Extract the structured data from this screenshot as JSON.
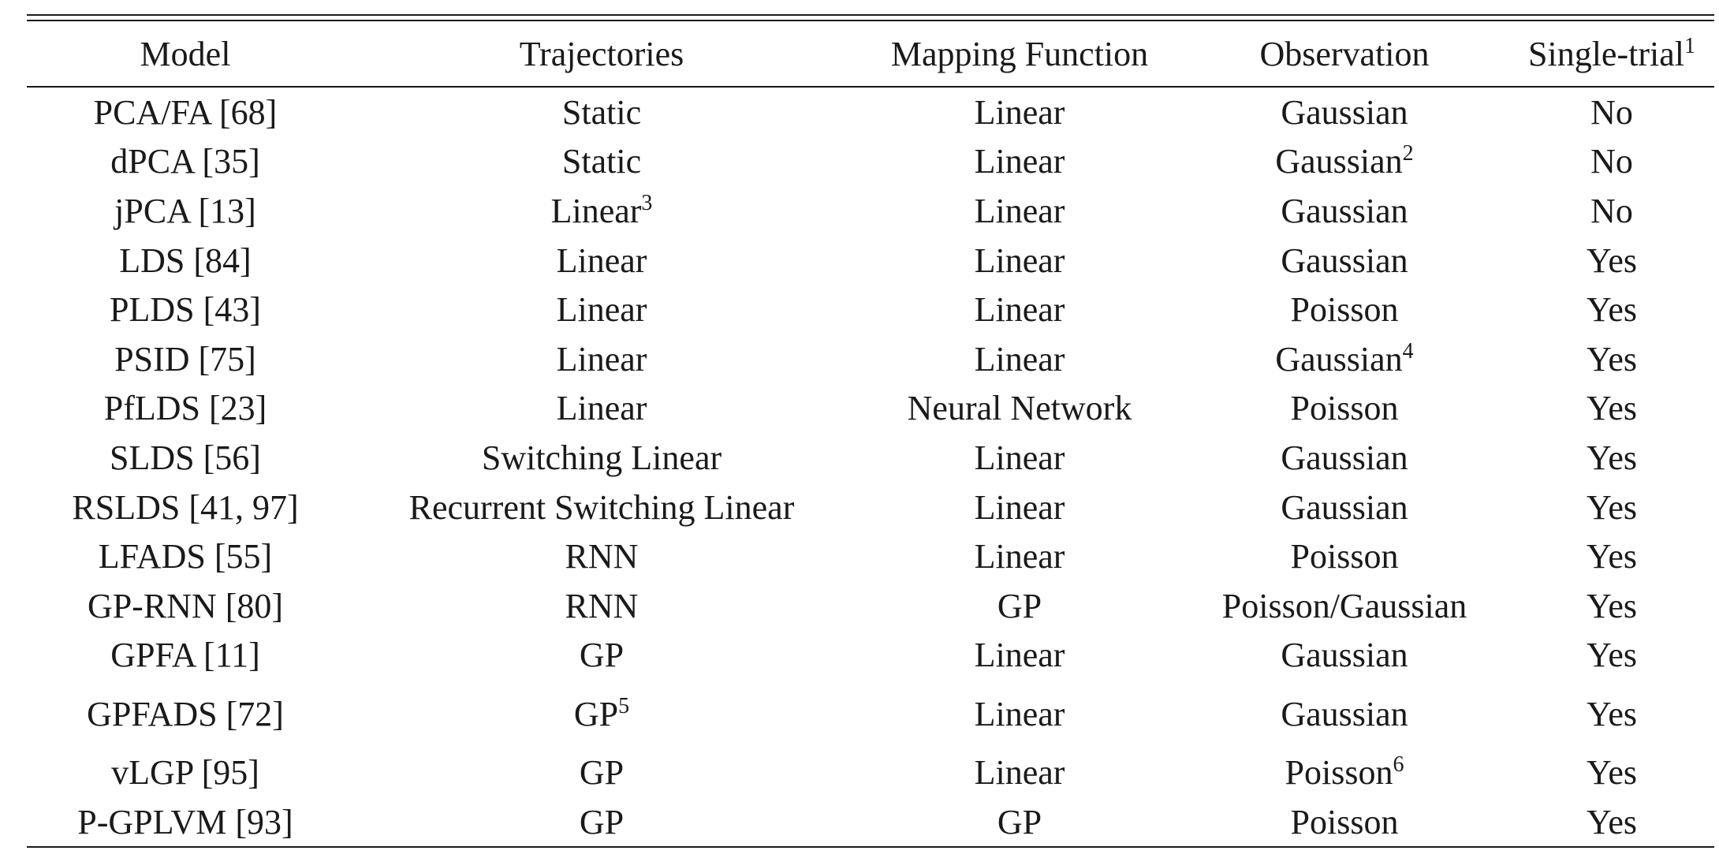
{
  "table": {
    "headers": {
      "model": "Model",
      "trajectories": "Trajectories",
      "mapping": "Mapping Function",
      "observation": "Observation",
      "single_trial": "Single-trial",
      "single_trial_note": "1"
    },
    "rows": [
      {
        "model": "PCA/FA [68]",
        "traj": "Static",
        "traj_note": "",
        "map": "Linear",
        "obs": "Gaussian",
        "obs_note": "",
        "single": "No"
      },
      {
        "model": "dPCA [35]",
        "traj": "Static",
        "traj_note": "",
        "map": "Linear",
        "obs": "Gaussian",
        "obs_note": "2",
        "single": "No"
      },
      {
        "model": "jPCA [13]",
        "traj": "Linear",
        "traj_note": "3",
        "map": "Linear",
        "obs": "Gaussian",
        "obs_note": "",
        "single": "No"
      },
      {
        "model": "LDS [84]",
        "traj": "Linear",
        "traj_note": "",
        "map": "Linear",
        "obs": "Gaussian",
        "obs_note": "",
        "single": "Yes"
      },
      {
        "model": "PLDS [43]",
        "traj": "Linear",
        "traj_note": "",
        "map": "Linear",
        "obs": "Poisson",
        "obs_note": "",
        "single": "Yes"
      },
      {
        "model": "PSID [75]",
        "traj": "Linear",
        "traj_note": "",
        "map": "Linear",
        "obs": "Gaussian",
        "obs_note": "4",
        "single": "Yes"
      },
      {
        "model": "PfLDS [23]",
        "traj": "Linear",
        "traj_note": "",
        "map": "Neural Network",
        "obs": "Poisson",
        "obs_note": "",
        "single": "Yes"
      },
      {
        "model": "SLDS [56]",
        "traj": "Switching Linear",
        "traj_note": "",
        "map": "Linear",
        "obs": "Gaussian",
        "obs_note": "",
        "single": "Yes"
      },
      {
        "model": "RSLDS [41, 97]",
        "traj": "Recurrent Switching Linear",
        "traj_note": "",
        "map": "Linear",
        "obs": "Gaussian",
        "obs_note": "",
        "single": "Yes"
      },
      {
        "model": "LFADS [55]",
        "traj": "RNN",
        "traj_note": "",
        "map": "Linear",
        "obs": "Poisson",
        "obs_note": "",
        "single": "Yes"
      },
      {
        "model": "GP-RNN [80]",
        "traj": "RNN",
        "traj_note": "",
        "map": "GP",
        "obs": "Poisson/Gaussian",
        "obs_note": "",
        "single": "Yes"
      },
      {
        "model": "GPFA [11]",
        "traj": "GP",
        "traj_note": "",
        "map": "Linear",
        "obs": "Gaussian",
        "obs_note": "",
        "single": "Yes"
      },
      {
        "model": "GPFADS [72]",
        "traj": "GP",
        "traj_note": "5",
        "map": "Linear",
        "obs": "Gaussian",
        "obs_note": "",
        "single": "Yes"
      },
      {
        "model": "vLGP [95]",
        "traj": "GP",
        "traj_note": "",
        "map": "Linear",
        "obs": "Poisson",
        "obs_note": "6",
        "single": "Yes"
      },
      {
        "model": "P-GPLVM [93]",
        "traj": "GP",
        "traj_note": "",
        "map": "GP",
        "obs": "Poisson",
        "obs_note": "",
        "single": "Yes"
      }
    ]
  }
}
